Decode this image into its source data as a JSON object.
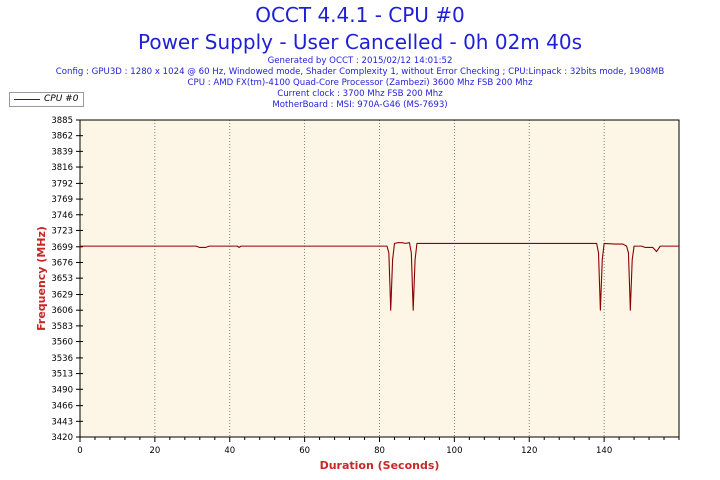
{
  "header": {
    "title": "OCCT 4.4.1 - CPU #0",
    "subtitle": "Power Supply - User Cancelled - 0h 02m 40s",
    "info_lines": [
      "Generated by OCCT : 2015/02/12 14:01:52",
      "Config : GPU3D : 1280 x 1024 @ 60 Hz, Windowed mode, Shader Complexity 1, without Error Checking ; CPU:Linpack : 32bits mode, 1908MB",
      "CPU : AMD FX(tm)-4100 Quad-Core Processor (Zambezi) 3600 Mhz FSB 200 Mhz",
      "Current clock : 3700 Mhz FSB 200 Mhz",
      "MotherBoard : MSI: 970A-G46 (MS-7693)"
    ]
  },
  "colors": {
    "title": "#1f1fd8",
    "plot_background": "#fdf6e6",
    "series_line": "#8b0000",
    "axis_title": "#c62828",
    "grid": "#666666"
  },
  "chart_data": {
    "type": "line",
    "xlabel": "Duration (Seconds)",
    "ylabel": "Frequency (MHz)",
    "xlim": [
      0,
      160
    ],
    "ylim": [
      3420,
      3885
    ],
    "x_ticks": [
      0,
      20,
      40,
      60,
      80,
      100,
      120,
      140
    ],
    "y_ticks": [
      3420,
      3443,
      3466,
      3490,
      3513,
      3536,
      3560,
      3583,
      3606,
      3629,
      3653,
      3676,
      3699,
      3723,
      3746,
      3769,
      3792,
      3816,
      3839,
      3862,
      3885
    ],
    "grid": "vertical dotted at major x ticks",
    "legend_position": "top-left",
    "series": [
      {
        "name": "CPU #0",
        "points": [
          [
            0,
            3700
          ],
          [
            31,
            3700
          ],
          [
            32,
            3698
          ],
          [
            33.5,
            3698
          ],
          [
            34.5,
            3700
          ],
          [
            42,
            3700
          ],
          [
            42.5,
            3698
          ],
          [
            43,
            3700
          ],
          [
            82,
            3700
          ],
          [
            82.5,
            3690
          ],
          [
            83,
            3606
          ],
          [
            83.5,
            3680
          ],
          [
            84,
            3704
          ],
          [
            85,
            3705
          ],
          [
            86,
            3705
          ],
          [
            87,
            3704
          ],
          [
            88,
            3705
          ],
          [
            88.5,
            3690
          ],
          [
            89,
            3606
          ],
          [
            89.5,
            3680
          ],
          [
            90,
            3704
          ],
          [
            92,
            3704
          ],
          [
            138,
            3704
          ],
          [
            138.5,
            3690
          ],
          [
            139,
            3606
          ],
          [
            139.5,
            3680
          ],
          [
            140,
            3704
          ],
          [
            143,
            3703
          ],
          [
            145,
            3703
          ],
          [
            146,
            3700
          ],
          [
            146.5,
            3690
          ],
          [
            147,
            3606
          ],
          [
            147.5,
            3680
          ],
          [
            148,
            3700
          ],
          [
            150,
            3700
          ],
          [
            151,
            3698
          ],
          [
            153,
            3698
          ],
          [
            153.5,
            3695
          ],
          [
            154,
            3692
          ],
          [
            155,
            3700
          ],
          [
            160,
            3700
          ]
        ]
      }
    ]
  }
}
